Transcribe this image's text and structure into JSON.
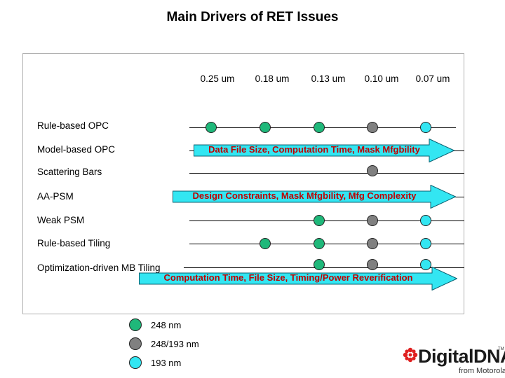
{
  "title": "Main Drivers of RET Issues",
  "columns": [
    "0.25 um",
    "0.18 um",
    "0.13 um",
    "0.10 um",
    "0.07  um"
  ],
  "rows": [
    "Rule-based OPC",
    "Model-based OPC",
    "Scattering Bars",
    "AA-PSM",
    "Weak PSM",
    "Rule-based Tiling",
    "Optimization-driven MB Tiling"
  ],
  "colors": {
    "nm248": "#1fb87a",
    "nm248_193": "#808080",
    "nm193": "#33e6f2",
    "arrow_fill": "#33e6f2",
    "arrow_text": "#c00000"
  },
  "dots": [
    {
      "row": 0,
      "col": 0,
      "kind": "nm248"
    },
    {
      "row": 0,
      "col": 1,
      "kind": "nm248"
    },
    {
      "row": 0,
      "col": 2,
      "kind": "nm248"
    },
    {
      "row": 0,
      "col": 3,
      "kind": "nm248_193"
    },
    {
      "row": 0,
      "col": 4,
      "kind": "nm193"
    },
    {
      "row": 2,
      "col": 3,
      "kind": "nm248_193"
    },
    {
      "row": 4,
      "col": 2,
      "kind": "nm248"
    },
    {
      "row": 4,
      "col": 3,
      "kind": "nm248_193"
    },
    {
      "row": 4,
      "col": 4,
      "kind": "nm193"
    },
    {
      "row": 5,
      "col": 1,
      "kind": "nm248"
    },
    {
      "row": 5,
      "col": 2,
      "kind": "nm248"
    },
    {
      "row": 5,
      "col": 3,
      "kind": "nm248_193"
    },
    {
      "row": 5,
      "col": 4,
      "kind": "nm193"
    },
    {
      "row": 6,
      "col": 2,
      "kind": "nm248"
    },
    {
      "row": 6,
      "col": 3,
      "kind": "nm248_193"
    },
    {
      "row": 6,
      "col": 4,
      "kind": "nm193"
    }
  ],
  "arrows": [
    {
      "text": "Data File Size, Computation Time, Mask Mfgbility"
    },
    {
      "text": "Design Constraints, Mask Mfgbility, Mfg Complexity"
    },
    {
      "text": "Computation Time, File Size, Timing/Power Reverification"
    }
  ],
  "legend": [
    {
      "kind": "nm248",
      "label": "248 nm"
    },
    {
      "kind": "nm248_193",
      "label": "248/193  nm"
    },
    {
      "kind": "nm193",
      "label": "193 nm"
    }
  ],
  "logo": {
    "wordmark": "DigitalDNA",
    "byline": "from Motorola",
    "trademark": "TM"
  }
}
